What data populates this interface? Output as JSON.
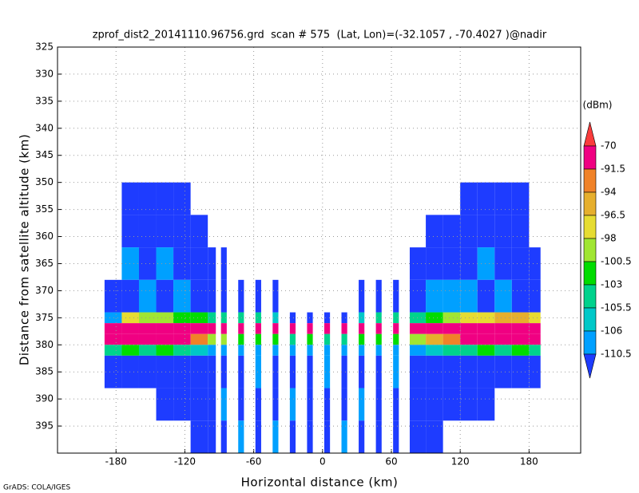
{
  "chart_data": {
    "type": "heatmap",
    "title": "zprof_dist2_20141110.96756.grd  scan # 575  (Lat, Lon)=(-32.1057 , -70.4027 )@nadir",
    "x_label": "Horizontal distance (km)",
    "y_label": "Distance from satellite altitude (km)",
    "footer": "GrADS: COLA/IGES",
    "xlim": [
      -231,
      225
    ],
    "ylim": [
      400,
      325
    ],
    "xticks": [
      -180,
      -120,
      -60,
      0,
      60,
      120,
      180
    ],
    "yticks": [
      325,
      330,
      335,
      340,
      345,
      350,
      355,
      360,
      365,
      370,
      375,
      380,
      385,
      390,
      395
    ],
    "grid": true,
    "x_edges": [
      -190,
      -175,
      -160,
      -145,
      -130,
      -115,
      -100,
      -93,
      -88.5,
      -83.5,
      -73.5,
      -68.5,
      -58.5,
      -53.5,
      -43.5,
      -38.5,
      -28.5,
      -23.5,
      -13.5,
      -8.5,
      1.5,
      6.5,
      16.5,
      21.5,
      31.5,
      36.5,
      46.5,
      51.5,
      61.5,
      66.5,
      76,
      90,
      105,
      120,
      135,
      150,
      165,
      180,
      190
    ],
    "y_edges": [
      350,
      356,
      362,
      368,
      374,
      376,
      378,
      380,
      382,
      388,
      394,
      400
    ],
    "values": [
      [
        null,
        null,
        null,
        -112,
        -107,
        -88,
        -88,
        -104,
        -112,
        null,
        null
      ],
      [
        -112,
        -112,
        -109,
        -112,
        -98,
        -85,
        -86,
        -103,
        -112,
        null,
        null
      ],
      [
        -112,
        -112,
        -112,
        -109,
        -100,
        -85,
        -87,
        -104,
        -112,
        null,
        null
      ],
      [
        -112,
        -112,
        -109,
        -112,
        -99,
        -84,
        -88,
        -102,
        -112,
        -112,
        null
      ],
      [
        -112,
        -112,
        -112,
        -109,
        -101,
        -86,
        -86,
        -104,
        -112,
        -112,
        null
      ],
      [
        null,
        -112,
        -112,
        -112,
        -103,
        -88,
        -94,
        -106,
        -112,
        -112,
        -112
      ],
      [
        null,
        null,
        -112,
        -112,
        -104,
        -90,
        -100,
        -108,
        -112,
        -112,
        -112
      ],
      [
        null,
        null,
        null,
        null,
        null,
        null,
        null,
        null,
        null,
        null,
        null
      ],
      [
        null,
        null,
        -112,
        -112,
        -104,
        -89,
        -100,
        -109,
        -112,
        -109,
        -112
      ],
      [
        null,
        null,
        null,
        null,
        null,
        null,
        null,
        null,
        null,
        null,
        null
      ],
      [
        null,
        null,
        null,
        -112,
        -104,
        -88,
        -101,
        -108,
        -112,
        -112,
        -109
      ],
      [
        null,
        null,
        null,
        null,
        null,
        null,
        null,
        null,
        null,
        null,
        null
      ],
      [
        null,
        null,
        null,
        -112,
        -105,
        -87,
        -102,
        -108,
        -109,
        -112,
        -112
      ],
      [
        null,
        null,
        null,
        null,
        null,
        null,
        null,
        null,
        null,
        null,
        null
      ],
      [
        null,
        null,
        null,
        -112,
        -106,
        -86,
        -103,
        -109,
        -112,
        -112,
        -109
      ],
      [
        null,
        null,
        null,
        null,
        null,
        null,
        null,
        null,
        null,
        null,
        null
      ],
      [
        null,
        null,
        null,
        null,
        -112,
        -86,
        -104,
        -109,
        -112,
        -109,
        -112
      ],
      [
        null,
        null,
        null,
        null,
        null,
        null,
        null,
        null,
        null,
        null,
        null
      ],
      [
        null,
        null,
        null,
        null,
        -112,
        -87,
        -103,
        -109,
        -112,
        -112,
        -112
      ],
      [
        null,
        null,
        null,
        null,
        null,
        null,
        null,
        null,
        null,
        null,
        null
      ],
      [
        null,
        null,
        null,
        null,
        -112,
        -86,
        -104,
        -109,
        -109,
        -112,
        -112
      ],
      [
        null,
        null,
        null,
        null,
        null,
        null,
        null,
        null,
        null,
        null,
        null
      ],
      [
        null,
        null,
        null,
        null,
        -112,
        -86,
        -104,
        -109,
        -112,
        -112,
        -109
      ],
      [
        null,
        null,
        null,
        null,
        null,
        null,
        null,
        null,
        null,
        null,
        null
      ],
      [
        null,
        null,
        null,
        -112,
        -106,
        -86,
        -103,
        -109,
        -112,
        -109,
        -112
      ],
      [
        null,
        null,
        null,
        null,
        null,
        null,
        null,
        null,
        null,
        null,
        null
      ],
      [
        null,
        null,
        null,
        -112,
        -105,
        -87,
        -102,
        -108,
        -112,
        -112,
        -112
      ],
      [
        null,
        null,
        null,
        null,
        null,
        null,
        null,
        null,
        null,
        null,
        null
      ],
      [
        null,
        null,
        null,
        -112,
        -104,
        -88,
        -101,
        -108,
        -109,
        -112,
        -112
      ],
      [
        null,
        null,
        null,
        null,
        null,
        null,
        null,
        null,
        null,
        null,
        null
      ],
      [
        null,
        null,
        -112,
        -112,
        -104,
        -88,
        -100,
        -107,
        -112,
        -112,
        -112
      ],
      [
        null,
        -112,
        -112,
        -109,
        -102,
        -87,
        -96,
        -106,
        -112,
        -112,
        -112
      ],
      [
        null,
        -112,
        -112,
        -109,
        -100,
        -86,
        -92,
        -105,
        -112,
        -112,
        null
      ],
      [
        -112,
        -112,
        -112,
        -109,
        -98,
        -84,
        -88,
        -104,
        -112,
        -112,
        null
      ],
      [
        -112,
        -112,
        -109,
        -112,
        -97,
        -84,
        -87,
        -103,
        -112,
        -112,
        null
      ],
      [
        -112,
        -112,
        -112,
        -109,
        -96,
        -83,
        -86,
        -104,
        -112,
        null,
        null
      ],
      [
        -112,
        -112,
        -112,
        -112,
        -95,
        -82,
        -86,
        -103,
        -112,
        null,
        null
      ],
      [
        null,
        null,
        -112,
        -112,
        -98,
        -86,
        -90,
        -104,
        -112,
        null,
        null
      ]
    ],
    "colorbar": {
      "label": "(dBm)",
      "levels": [
        -70,
        -91.5,
        -94,
        -96.5,
        -98,
        -100.5,
        -103,
        -105.5,
        -106,
        -110.5
      ],
      "colors": [
        "#fa3c3c",
        "#f00082",
        "#f08228",
        "#e6af2d",
        "#e6dc32",
        "#a0e632",
        "#00dc00",
        "#00d28c",
        "#00c8c8",
        "#00a0ff",
        "#1e3cff"
      ]
    }
  }
}
